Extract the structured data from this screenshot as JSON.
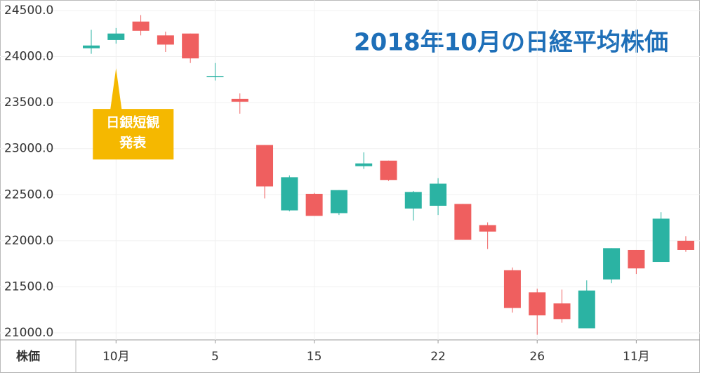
{
  "chart_data": {
    "type": "candlestick",
    "title": "2018年10月の日経平均株価",
    "row_label": "株価",
    "categories": [
      null,
      "10月",
      null,
      null,
      null,
      "5",
      null,
      null,
      null,
      "15",
      null,
      null,
      null,
      null,
      "22",
      null,
      null,
      null,
      "26",
      null,
      null,
      null,
      "11月",
      null,
      null
    ],
    "open": [
      24090,
      24180,
      24380,
      24230,
      24250,
      23780,
      23540,
      23040,
      22330,
      22510,
      22300,
      22810,
      22870,
      22350,
      22380,
      22400,
      22170,
      21680,
      21440,
      21320,
      21050,
      21580,
      21900,
      21770,
      22000
    ],
    "high": [
      24290,
      24310,
      24450,
      24270,
      24250,
      23930,
      23600,
      23040,
      22710,
      22520,
      22550,
      22960,
      22870,
      22540,
      22680,
      22400,
      22200,
      21710,
      21480,
      21470,
      21570,
      21920,
      21900,
      22310,
      22050
    ],
    "low": [
      24030,
      24140,
      24230,
      24050,
      23930,
      23740,
      23380,
      22460,
      22320,
      22270,
      22280,
      22780,
      22650,
      22220,
      22280,
      22010,
      21910,
      21220,
      20980,
      21110,
      21050,
      21540,
      21640,
      21770,
      21880
    ],
    "close": [
      24120,
      24250,
      24280,
      24130,
      23980,
      23790,
      23510,
      22590,
      22690,
      22270,
      22550,
      22840,
      22660,
      22530,
      22620,
      22010,
      22100,
      21270,
      21190,
      21150,
      21460,
      21920,
      21700,
      22240,
      21900
    ],
    "up_color": "#2bb3a3",
    "down_color": "#ef5f5f",
    "ylim": [
      20924,
      24614
    ],
    "yticks": [
      {
        "value": 21000,
        "label": "21000.0"
      },
      {
        "value": 21500,
        "label": "21500.0"
      },
      {
        "value": 22000,
        "label": "22000.0"
      },
      {
        "value": 22500,
        "label": "22500.0"
      },
      {
        "value": 23000,
        "label": "23000.0"
      },
      {
        "value": 23500,
        "label": "23500.0"
      },
      {
        "value": 24000,
        "label": "24000.0"
      },
      {
        "value": 24500,
        "label": "24500.0"
      }
    ],
    "grid": true,
    "annotation": {
      "lines": [
        "日銀短観",
        "発表"
      ],
      "category_index": 1,
      "color": "#f5b800"
    }
  }
}
